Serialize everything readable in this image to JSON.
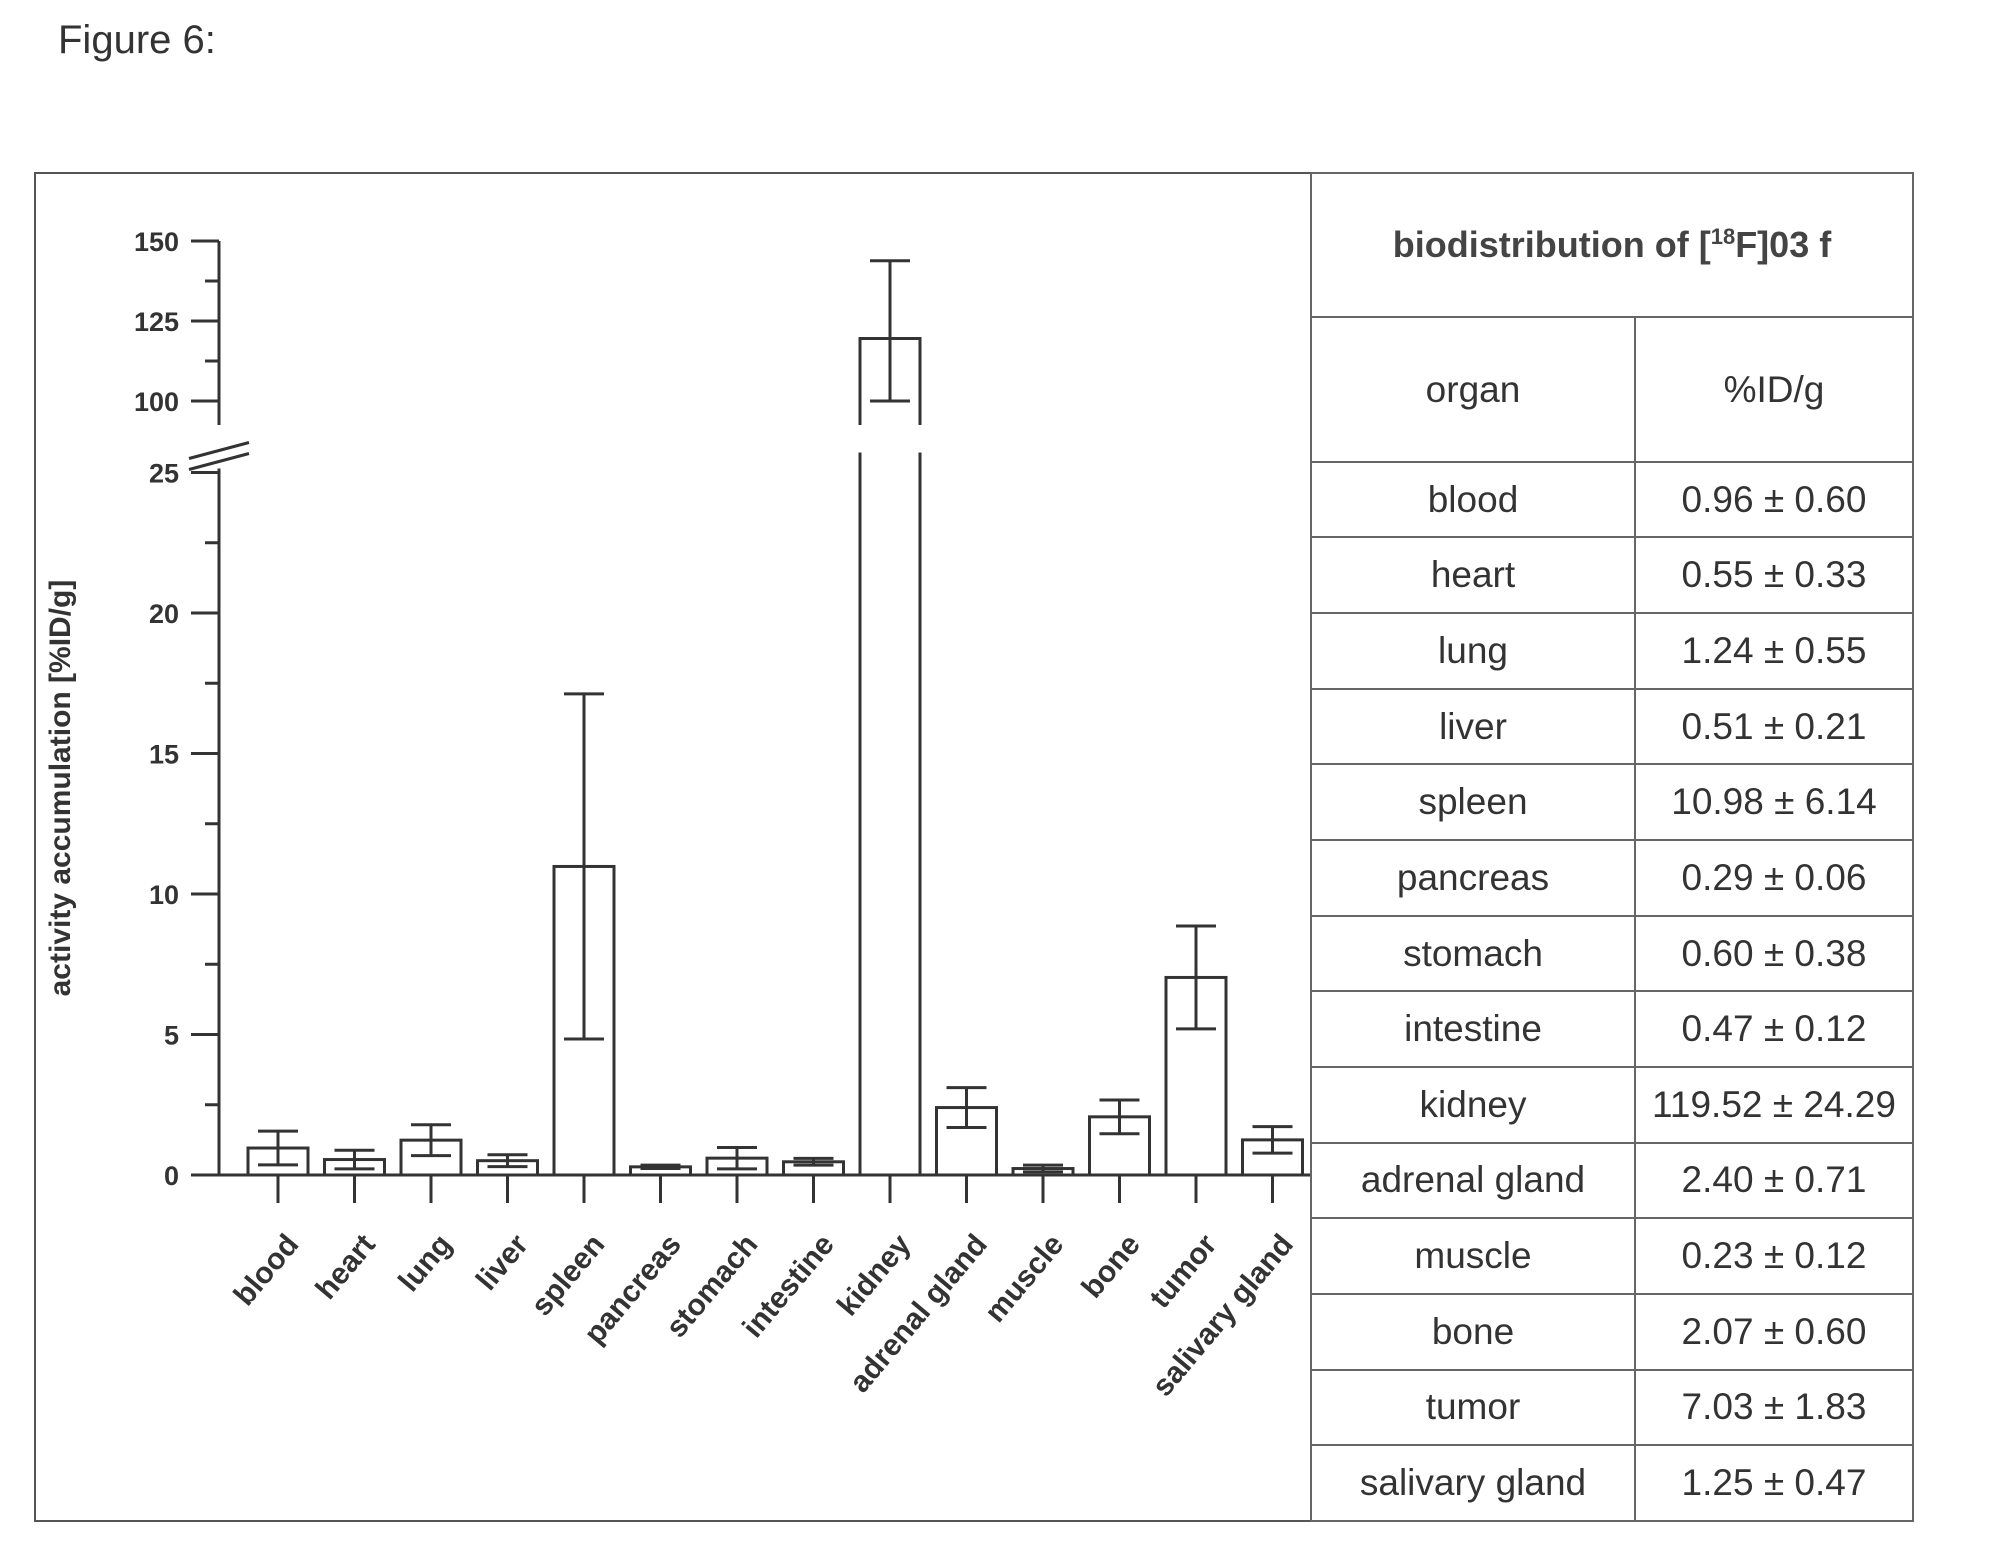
{
  "figure_label": "Figure 6:",
  "chart_data": {
    "type": "bar",
    "ylabel": "activity accumulation [%ID/g]",
    "y_ticks_lower": [
      0,
      5,
      10,
      15,
      20,
      25
    ],
    "y_ticks_upper": [
      100,
      125,
      150
    ],
    "axis_break": {
      "lower_max": 25,
      "upper_min": 100,
      "upper_max": 150
    },
    "categories": [
      "blood",
      "heart",
      "lung",
      "liver",
      "spleen",
      "pancreas",
      "stomach",
      "intestine",
      "kidney",
      "adrenal gland",
      "muscle",
      "bone",
      "tumor",
      "salivary gland"
    ],
    "values": [
      0.96,
      0.55,
      1.24,
      0.51,
      10.98,
      0.29,
      0.6,
      0.47,
      119.52,
      2.4,
      0.23,
      2.07,
      7.03,
      1.25
    ],
    "errors": [
      0.6,
      0.33,
      0.55,
      0.21,
      6.14,
      0.06,
      0.38,
      0.12,
      24.29,
      0.71,
      0.12,
      0.6,
      1.83,
      0.47
    ]
  },
  "table": {
    "title_prefix": "biodistribution of [",
    "title_sup": "18",
    "title_suffix": "F]03 f",
    "col1": "organ",
    "col2": "%ID/g",
    "rows": [
      {
        "organ": "blood",
        "value": "0.96 ± 0.60"
      },
      {
        "organ": "heart",
        "value": "0.55 ± 0.33"
      },
      {
        "organ": "lung",
        "value": "1.24 ± 0.55"
      },
      {
        "organ": "liver",
        "value": "0.51 ± 0.21"
      },
      {
        "organ": "spleen",
        "value": "10.98 ± 6.14"
      },
      {
        "organ": "pancreas",
        "value": "0.29 ± 0.06"
      },
      {
        "organ": "stomach",
        "value": "0.60 ± 0.38"
      },
      {
        "organ": "intestine",
        "value": "0.47 ± 0.12"
      },
      {
        "organ": "kidney",
        "value": "119.52 ± 24.29"
      },
      {
        "organ": "adrenal gland",
        "value": "2.40 ± 0.71"
      },
      {
        "organ": "muscle",
        "value": "0.23 ± 0.12"
      },
      {
        "organ": "bone",
        "value": "2.07 ± 0.60"
      },
      {
        "organ": "tumor",
        "value": "7.03 ± 1.83"
      },
      {
        "organ": "salivary gland",
        "value": "1.25 ± 0.47"
      }
    ]
  }
}
